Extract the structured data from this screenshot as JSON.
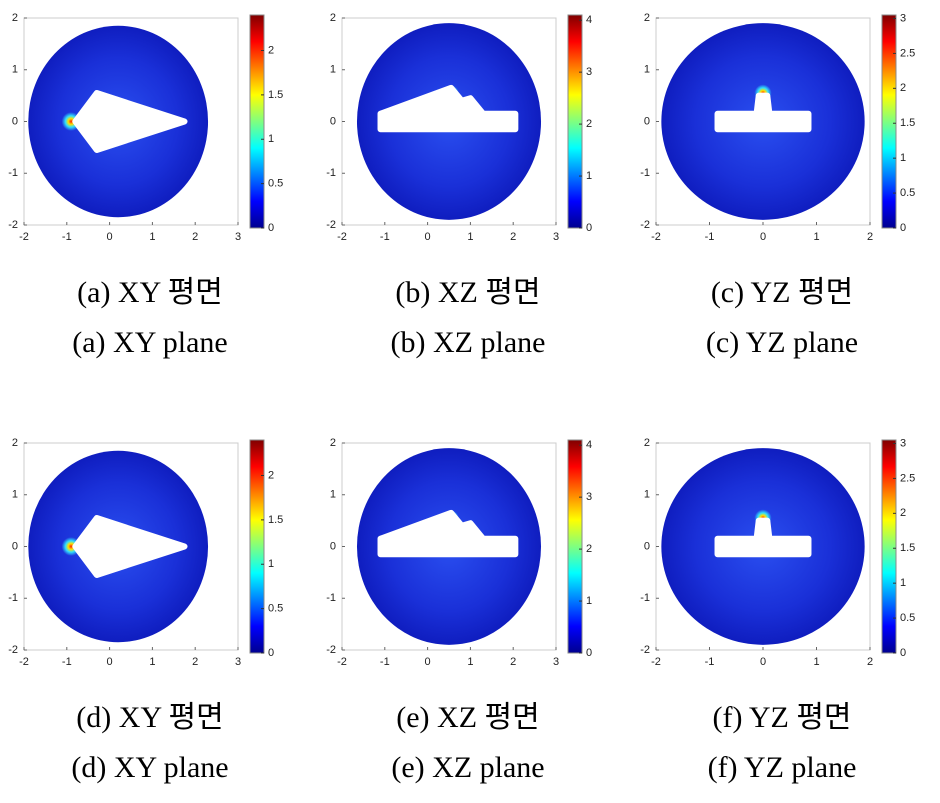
{
  "panels": [
    {
      "plane": "XY",
      "caption_ko": "(a)  XY  평면",
      "caption_en": "(a)  XY  plane",
      "xticks": [
        -2,
        -1,
        0,
        1,
        2,
        3
      ],
      "yticks": [
        2,
        1,
        0,
        -1,
        -2
      ],
      "colorbar_lim": [
        0,
        2.4
      ],
      "colorbar_ticks": [
        0,
        0.5,
        1,
        1.5,
        2
      ]
    },
    {
      "plane": "XZ",
      "caption_ko": "(b)  XZ  평면",
      "caption_en": "(b)  XZ  plane",
      "xticks": [
        -2,
        -1,
        0,
        1,
        2,
        3
      ],
      "yticks": [
        2,
        1,
        0,
        -1,
        -2
      ],
      "colorbar_lim": [
        0,
        4.1
      ],
      "colorbar_ticks": [
        0,
        1,
        2,
        3,
        4
      ]
    },
    {
      "plane": "YZ",
      "caption_ko": "(c)  YZ  평면",
      "caption_en": "(c)  YZ  plane",
      "xticks": [
        -2,
        -1,
        0,
        1,
        2
      ],
      "yticks": [
        2,
        1,
        0,
        -1,
        -2
      ],
      "colorbar_lim": [
        0,
        3.05
      ],
      "colorbar_ticks": [
        0,
        0.5,
        1,
        1.5,
        2,
        2.5,
        3
      ]
    },
    {
      "plane": "XY",
      "caption_ko": "(d)  XY  평면",
      "caption_en": "(d)  XY  plane",
      "xticks": [
        -2,
        -1,
        0,
        1,
        2,
        3
      ],
      "yticks": [
        2,
        1,
        0,
        -1,
        -2
      ],
      "colorbar_lim": [
        0,
        2.4
      ],
      "colorbar_ticks": [
        0,
        0.5,
        1,
        1.5,
        2
      ]
    },
    {
      "plane": "XZ",
      "caption_ko": "(e)  XZ  평면",
      "caption_en": "(e)  XZ  plane",
      "xticks": [
        -2,
        -1,
        0,
        1,
        2,
        3
      ],
      "yticks": [
        2,
        1,
        0,
        -1,
        -2
      ],
      "colorbar_lim": [
        0,
        4.1
      ],
      "colorbar_ticks": [
        0,
        1,
        2,
        3,
        4
      ]
    },
    {
      "plane": "YZ",
      "caption_ko": "(f)  YZ  평면",
      "caption_en": "(f)  YZ  plane",
      "xticks": [
        -2,
        -1,
        0,
        1,
        2
      ],
      "yticks": [
        2,
        1,
        0,
        -1,
        -2
      ],
      "colorbar_lim": [
        0,
        3.05
      ],
      "colorbar_ticks": [
        0,
        0.5,
        1,
        1.5,
        2,
        2.5,
        3
      ]
    }
  ]
}
